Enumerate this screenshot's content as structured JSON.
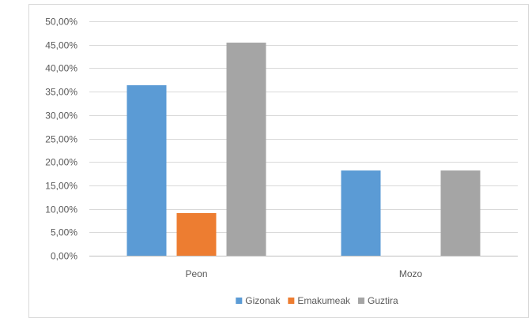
{
  "chart_data": {
    "type": "bar",
    "categories": [
      "Peon",
      "Mozo"
    ],
    "series": [
      {
        "name": "Gizonak",
        "values": [
          36.36,
          18.18
        ],
        "color": "#5B9BD5"
      },
      {
        "name": "Emakumeak",
        "values": [
          9.09,
          0
        ],
        "color": "#ED7D31"
      },
      {
        "name": "Guztira",
        "values": [
          45.45,
          18.18
        ],
        "color": "#A5A5A5"
      }
    ],
    "ylim": [
      0,
      50
    ],
    "yticks": [
      {
        "value": 0,
        "label": "0,00%"
      },
      {
        "value": 5,
        "label": "5,00%"
      },
      {
        "value": 10,
        "label": "10,00%"
      },
      {
        "value": 15,
        "label": "15,00%"
      },
      {
        "value": 20,
        "label": "20,00%"
      },
      {
        "value": 25,
        "label": "25,00%"
      },
      {
        "value": 30,
        "label": "30,00%"
      },
      {
        "value": 35,
        "label": "35,00%"
      },
      {
        "value": 40,
        "label": "40,00%"
      },
      {
        "value": 45,
        "label": "45,00%"
      },
      {
        "value": 50,
        "label": "50,00%"
      }
    ],
    "grid": true,
    "legend_position": "bottom",
    "gridline_color": "#D9D9D9",
    "axis_color": "#BFBFBF"
  }
}
